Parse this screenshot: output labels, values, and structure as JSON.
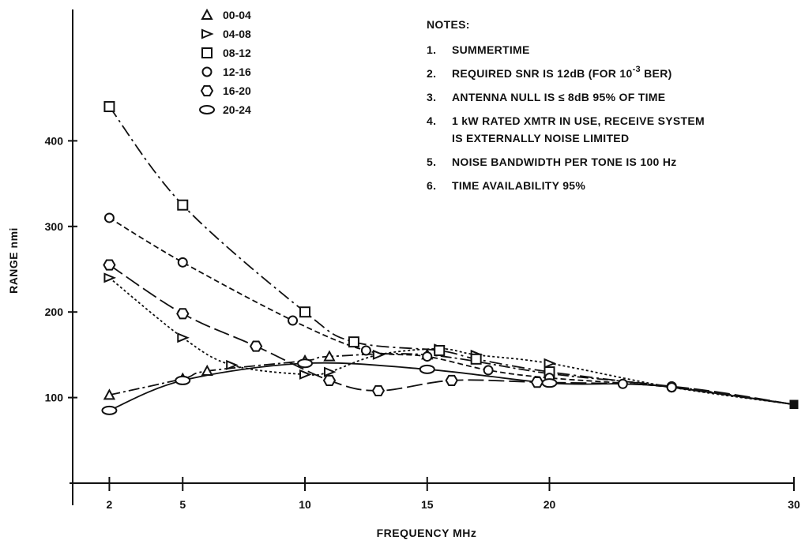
{
  "chart_data": {
    "type": "line",
    "xlabel": "FREQUENCY MHz",
    "ylabel": "RANGE nmi",
    "x_ticks": [
      2,
      5,
      10,
      15,
      20,
      30
    ],
    "y_ticks": [
      100,
      200,
      300,
      400
    ],
    "xlim": [
      0.5,
      30
    ],
    "ylim": [
      0,
      500
    ],
    "grid": false,
    "legend_position": "top-left",
    "series": [
      {
        "name": "00-04",
        "marker": "triangle-up",
        "dash": "14 4 3 4",
        "points": [
          [
            2,
            103
          ],
          [
            5,
            122
          ],
          [
            6,
            131
          ],
          [
            10,
            143
          ],
          [
            11,
            148
          ],
          [
            15,
            150
          ],
          [
            20,
            128
          ],
          [
            25,
            113
          ],
          [
            30,
            92
          ]
        ]
      },
      {
        "name": "04-08",
        "marker": "triangle-right",
        "dash": "3 3",
        "points": [
          [
            2,
            240
          ],
          [
            5,
            170
          ],
          [
            7,
            138
          ],
          [
            10,
            127
          ],
          [
            11,
            130
          ],
          [
            13,
            150
          ],
          [
            15.5,
            157
          ],
          [
            17,
            150
          ],
          [
            20,
            140
          ],
          [
            25,
            112
          ],
          [
            30,
            92
          ]
        ]
      },
      {
        "name": "08-12",
        "marker": "square",
        "dash": "16 5 3 5",
        "points": [
          [
            2,
            440
          ],
          [
            5,
            325
          ],
          [
            10,
            200
          ],
          [
            12,
            165
          ],
          [
            15.5,
            155
          ],
          [
            17,
            145
          ],
          [
            20,
            130
          ],
          [
            25,
            112
          ],
          [
            30,
            92
          ]
        ]
      },
      {
        "name": "12-16",
        "marker": "circle",
        "dash": "7 4",
        "points": [
          [
            2,
            310
          ],
          [
            5,
            258
          ],
          [
            9.5,
            190
          ],
          [
            12.5,
            155
          ],
          [
            15,
            148
          ],
          [
            17.5,
            132
          ],
          [
            20,
            123
          ],
          [
            25,
            112
          ],
          [
            30,
            92
          ]
        ]
      },
      {
        "name": "16-20",
        "marker": "hexagon",
        "dash": "20 6",
        "points": [
          [
            2,
            255
          ],
          [
            5,
            198
          ],
          [
            8,
            160
          ],
          [
            11,
            120
          ],
          [
            13,
            108
          ],
          [
            16,
            120
          ],
          [
            19.5,
            118
          ],
          [
            25,
            113
          ],
          [
            30,
            92
          ]
        ]
      },
      {
        "name": "20-24",
        "marker": "ellipse",
        "dash": "",
        "points": [
          [
            2,
            85
          ],
          [
            5,
            120
          ],
          [
            10,
            140
          ],
          [
            15,
            133
          ],
          [
            20,
            117
          ],
          [
            23,
            116
          ],
          [
            25,
            112
          ],
          [
            30,
            92
          ]
        ]
      }
    ],
    "notes_title": "NOTES:",
    "notes": [
      {
        "num": "1.",
        "text": "SUMMERTIME"
      },
      {
        "num": "2.",
        "text": "REQUIRED SNR IS 12dB (FOR 10",
        "sup": "-3",
        "after": " BER)"
      },
      {
        "num": "3.",
        "text": "ANTENNA NULL IS ≤ 8dB 95% OF TIME"
      },
      {
        "num": "4.",
        "text": "1 kW RATED XMTR IN USE, RECEIVE SYSTEM",
        "cont": "IS EXTERNALLY NOISE LIMITED"
      },
      {
        "num": "5.",
        "text": "NOISE BANDWIDTH PER TONE IS 100 Hz"
      },
      {
        "num": "6.",
        "text": "TIME AVAILABILITY 95%"
      }
    ]
  }
}
